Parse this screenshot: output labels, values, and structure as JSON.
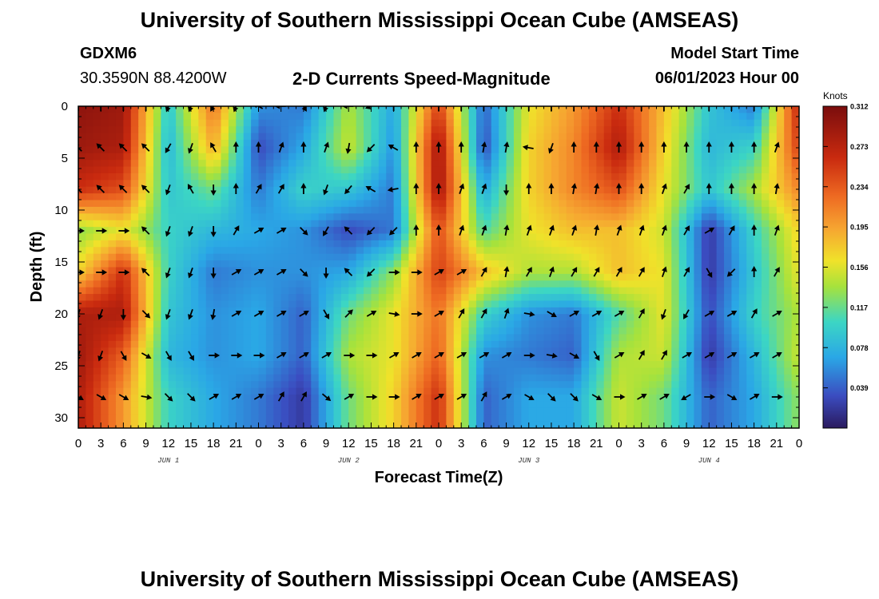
{
  "header": {
    "title": "University of Southern Mississippi Ocean Cube (AMSEAS)",
    "station": "GDXM6",
    "coords": "30.3590N  88.4200W",
    "plot_name": "2-D Currents Speed-Magnitude",
    "model_start_label": "Model Start Time",
    "model_start_value": "06/01/2023 Hour 00"
  },
  "footer": {
    "title": "University of Southern Mississippi Ocean Cube (AMSEAS)"
  },
  "chart_data": {
    "type": "heatmap",
    "title": "2-D Currents Speed-Magnitude",
    "xlabel": "Forecast Time(Z)",
    "ylabel": "Depth (ft)",
    "xlim": [
      0,
      96
    ],
    "ylim": [
      0,
      31
    ],
    "x_tick_labels": [
      "0",
      "3",
      "6",
      "9",
      "12",
      "15",
      "18",
      "21",
      "0",
      "3",
      "6",
      "9",
      "12",
      "15",
      "18",
      "21",
      "0",
      "3",
      "6",
      "9",
      "12",
      "15",
      "18",
      "21",
      "0",
      "3",
      "6",
      "9",
      "12",
      "15",
      "18",
      "21",
      "0"
    ],
    "y_ticks": [
      0,
      5,
      10,
      15,
      20,
      25,
      30
    ],
    "day_labels": [
      {
        "label": "JUN 1",
        "hour": 12
      },
      {
        "label": "JUN 2",
        "hour": 36
      },
      {
        "label": "JUN 3",
        "hour": 60
      },
      {
        "label": "JUN 4",
        "hour": 84
      }
    ],
    "colorbar": {
      "units": "Knots",
      "ticks": [
        "0.312",
        "0.273",
        "0.234",
        "0.195",
        "0.156",
        "0.117",
        "0.078",
        "0.039"
      ],
      "range": [
        0,
        0.312
      ]
    },
    "depths": [
      0,
      4,
      8,
      12,
      16,
      20,
      24,
      28
    ],
    "hours": [
      0,
      6,
      12,
      18,
      24,
      30,
      36,
      42,
      48,
      54,
      60,
      66,
      72,
      78,
      84,
      90,
      96
    ],
    "speed": [
      [
        0.3,
        0.29,
        0.09,
        0.22,
        0.06,
        0.05,
        0.14,
        0.07,
        0.25,
        0.04,
        0.16,
        0.2,
        0.26,
        0.18,
        0.09,
        0.05,
        0.27
      ],
      [
        0.29,
        0.28,
        0.08,
        0.19,
        0.03,
        0.07,
        0.15,
        0.06,
        0.29,
        0.03,
        0.17,
        0.21,
        0.28,
        0.17,
        0.08,
        0.1,
        0.25
      ],
      [
        0.26,
        0.24,
        0.09,
        0.12,
        0.05,
        0.1,
        0.09,
        0.05,
        0.29,
        0.07,
        0.17,
        0.21,
        0.24,
        0.16,
        0.09,
        0.14,
        0.21
      ],
      [
        0.13,
        0.16,
        0.1,
        0.08,
        0.07,
        0.06,
        0.03,
        0.05,
        0.24,
        0.11,
        0.16,
        0.18,
        0.18,
        0.15,
        0.02,
        0.1,
        0.17
      ],
      [
        0.17,
        0.26,
        0.1,
        0.05,
        0.06,
        0.06,
        0.07,
        0.13,
        0.25,
        0.18,
        0.14,
        0.14,
        0.18,
        0.16,
        0.02,
        0.09,
        0.16
      ],
      [
        0.28,
        0.28,
        0.09,
        0.06,
        0.07,
        0.04,
        0.12,
        0.16,
        0.22,
        0.1,
        0.06,
        0.05,
        0.11,
        0.16,
        0.03,
        0.1,
        0.14
      ],
      [
        0.29,
        0.23,
        0.08,
        0.06,
        0.07,
        0.04,
        0.14,
        0.16,
        0.23,
        0.06,
        0.05,
        0.04,
        0.14,
        0.15,
        0.02,
        0.08,
        0.15
      ],
      [
        0.28,
        0.2,
        0.1,
        0.07,
        0.05,
        0.02,
        0.12,
        0.17,
        0.26,
        0.04,
        0.07,
        0.07,
        0.15,
        0.12,
        0.04,
        0.07,
        0.13
      ]
    ],
    "arrow_hours": [
      0,
      3,
      6,
      9,
      12,
      15,
      18,
      21,
      24,
      27,
      30,
      33,
      36,
      39,
      42,
      45,
      48,
      51,
      54,
      57,
      60,
      63,
      66,
      69,
      72,
      75,
      78,
      81,
      84,
      87,
      90,
      93
    ],
    "arrow_depths": [
      0,
      4,
      8,
      12,
      16,
      20,
      24,
      28
    ],
    "arrow_dir_deg": [
      [
        0,
        0,
        0,
        0,
        200,
        200,
        210,
        200,
        300,
        270,
        150,
        200,
        270,
        250,
        0,
        0,
        0,
        0,
        0,
        0,
        0,
        0,
        0,
        0,
        0,
        0,
        0,
        0,
        0,
        0,
        0,
        0
      ],
      [
        315,
        315,
        315,
        315,
        210,
        200,
        330,
        0,
        0,
        20,
        0,
        20,
        190,
        225,
        300,
        0,
        0,
        0,
        10,
        10,
        280,
        200,
        0,
        0,
        0,
        0,
        0,
        0,
        0,
        0,
        0,
        20
      ],
      [
        315,
        315,
        315,
        315,
        200,
        330,
        180,
        0,
        30,
        30,
        0,
        200,
        220,
        300,
        260,
        0,
        0,
        20,
        20,
        180,
        0,
        0,
        10,
        10,
        0,
        0,
        20,
        30,
        0,
        0,
        0,
        10
      ],
      [
        90,
        90,
        90,
        315,
        200,
        200,
        180,
        30,
        60,
        60,
        135,
        210,
        315,
        225,
        225,
        0,
        0,
        20,
        20,
        10,
        20,
        20,
        20,
        10,
        20,
        20,
        20,
        30,
        60,
        30,
        0,
        20
      ],
      [
        90,
        90,
        90,
        315,
        200,
        200,
        180,
        60,
        60,
        60,
        135,
        180,
        315,
        225,
        90,
        90,
        60,
        60,
        30,
        10,
        30,
        20,
        30,
        30,
        30,
        30,
        20,
        30,
        150,
        225,
        0,
        30
      ],
      [
        200,
        200,
        180,
        135,
        200,
        200,
        190,
        60,
        60,
        60,
        60,
        150,
        45,
        60,
        100,
        90,
        60,
        30,
        30,
        20,
        100,
        120,
        60,
        60,
        60,
        30,
        200,
        210,
        60,
        60,
        30,
        60
      ],
      [
        200,
        200,
        150,
        120,
        150,
        150,
        90,
        90,
        90,
        60,
        60,
        60,
        90,
        90,
        60,
        60,
        60,
        60,
        60,
        60,
        90,
        100,
        120,
        150,
        60,
        30,
        30,
        60,
        60,
        60,
        60,
        60
      ],
      [
        120,
        120,
        120,
        100,
        135,
        135,
        60,
        60,
        60,
        30,
        30,
        130,
        60,
        90,
        90,
        60,
        60,
        60,
        30,
        60,
        120,
        135,
        135,
        120,
        90,
        60,
        60,
        240,
        90,
        120,
        60,
        90
      ]
    ]
  }
}
